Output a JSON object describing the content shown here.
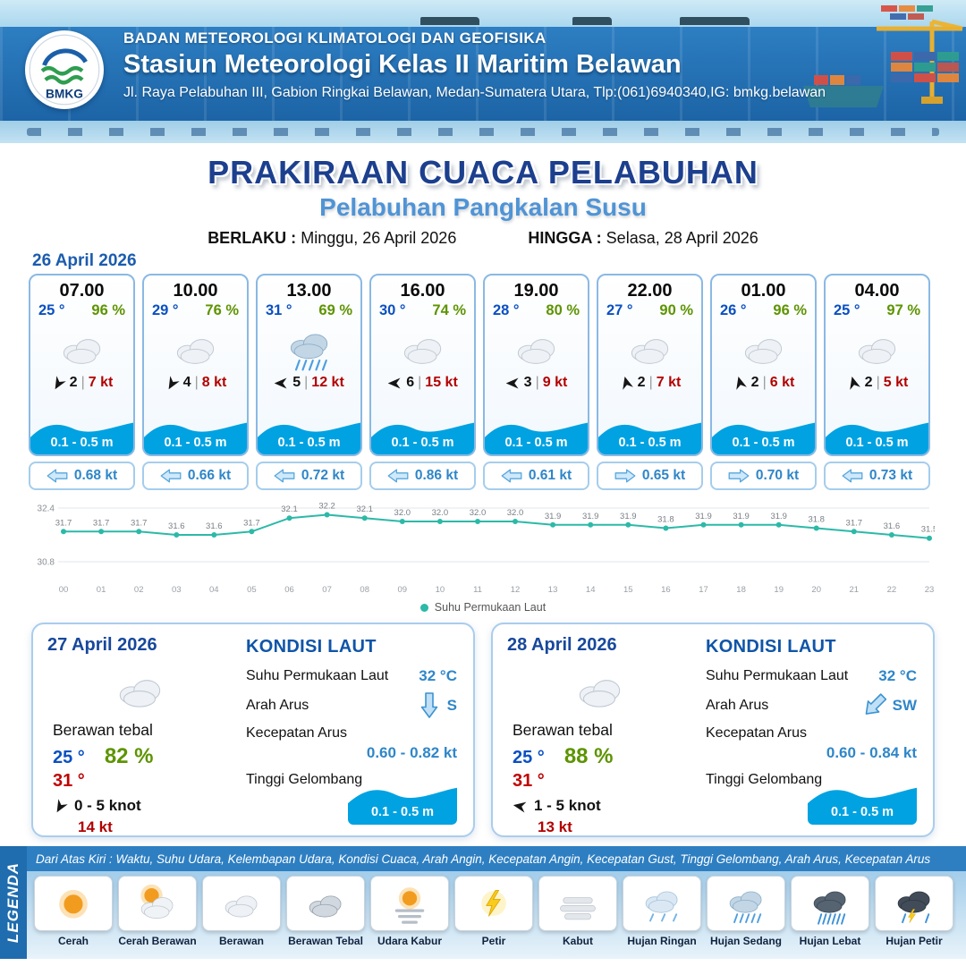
{
  "header": {
    "logo_text": "BMKG",
    "org": "BADAN METEOROLOGI KLIMATOLOGI DAN GEOFISIKA",
    "station": "Stasiun Meteorologi Kelas II Maritim Belawan",
    "address": "Jl. Raya Pelabuhan III, Gabion Ringkai Belawan, Medan-Sumatera Utara, Tlp:(061)6940340,IG: bmkg.belawan"
  },
  "title": {
    "main": "PRAKIRAAN CUACA PELABUHAN",
    "subtitle": "Pelabuhan Pangkalan Susu",
    "valid_label": "BERLAKU :",
    "valid_value": "Minggu, 26 April 2026",
    "until_label": "HINGGA :",
    "until_value": "Selasa, 28 April 2026"
  },
  "forecast": {
    "date": "26 April 2026",
    "sep": "|",
    "cards": [
      {
        "time": "07.00",
        "temp": "25 °",
        "humidity": "96 %",
        "icon": "cloud",
        "wind_dir_deg": 120,
        "wind_num": "2",
        "wind_speed": "7 kt",
        "wave": "0.1 - 0.5 m",
        "current_dir_deg": 180,
        "current": "0.68 kt"
      },
      {
        "time": "10.00",
        "temp": "29 °",
        "humidity": "76 %",
        "icon": "cloud",
        "wind_dir_deg": 120,
        "wind_num": "4",
        "wind_speed": "8 kt",
        "wave": "0.1 - 0.5 m",
        "current_dir_deg": 180,
        "current": "0.66 kt"
      },
      {
        "time": "13.00",
        "temp": "31 °",
        "humidity": "69 %",
        "icon": "rain-medium",
        "wind_dir_deg": 180,
        "wind_num": "5",
        "wind_speed": "12 kt",
        "wave": "0.1 - 0.5 m",
        "current_dir_deg": 180,
        "current": "0.72 kt"
      },
      {
        "time": "16.00",
        "temp": "30 °",
        "humidity": "74 %",
        "icon": "cloud",
        "wind_dir_deg": 180,
        "wind_num": "6",
        "wind_speed": "15 kt",
        "wave": "0.1 - 0.5 m",
        "current_dir_deg": 180,
        "current": "0.86 kt"
      },
      {
        "time": "19.00",
        "temp": "28 °",
        "humidity": "80 %",
        "icon": "cloud",
        "wind_dir_deg": 180,
        "wind_num": "3",
        "wind_speed": "9 kt",
        "wave": "0.1 - 0.5 m",
        "current_dir_deg": 180,
        "current": "0.61 kt"
      },
      {
        "time": "22.00",
        "temp": "27 °",
        "humidity": "90 %",
        "icon": "cloud",
        "wind_dir_deg": 255,
        "wind_num": "2",
        "wind_speed": "7 kt",
        "wave": "0.1 - 0.5 m",
        "current_dir_deg": 0,
        "current": "0.65 kt"
      },
      {
        "time": "01.00",
        "temp": "26 °",
        "humidity": "96 %",
        "icon": "cloud",
        "wind_dir_deg": 255,
        "wind_num": "2",
        "wind_speed": "6 kt",
        "wave": "0.1 - 0.5 m",
        "current_dir_deg": 0,
        "current": "0.70 kt"
      },
      {
        "time": "04.00",
        "temp": "25 °",
        "humidity": "97 %",
        "icon": "cloud",
        "wind_dir_deg": 255,
        "wind_num": "2",
        "wind_speed": "5 kt",
        "wave": "0.1 - 0.5 m",
        "current_dir_deg": 180,
        "current": "0.73 kt"
      }
    ]
  },
  "chart_data": {
    "type": "line",
    "series_name": "Suhu Permukaan Laut",
    "x": [
      "00",
      "01",
      "02",
      "03",
      "04",
      "05",
      "06",
      "07",
      "08",
      "09",
      "10",
      "11",
      "12",
      "13",
      "14",
      "15",
      "16",
      "17",
      "18",
      "19",
      "20",
      "21",
      "22",
      "23"
    ],
    "values": [
      31.7,
      31.7,
      31.7,
      31.6,
      31.6,
      31.7,
      32.1,
      32.2,
      32.1,
      32.0,
      32.0,
      32.0,
      32.0,
      31.9,
      31.9,
      31.9,
      31.8,
      31.9,
      31.9,
      31.9,
      31.8,
      31.7,
      31.6,
      31.5
    ],
    "ylim": [
      30.8,
      32.4
    ],
    "yticks": [
      32.4,
      30.8
    ],
    "line_color": "#2cb9a8",
    "legend_position": "bottom"
  },
  "days": [
    {
      "date": "27 April 2026",
      "icon": "cloud",
      "condition": "Berawan tebal",
      "temp_min": "25 °",
      "temp_max": "31 °",
      "humidity": "82 %",
      "wind_dir_deg": 120,
      "wind_range": "0  - 5 knot",
      "gust": "14 kt",
      "sea": {
        "title": "KONDISI LAUT",
        "sst_label": "Suhu Permukaan Laut",
        "sst": "32 °C",
        "dir_label": "Arah Arus",
        "dir_deg": 90,
        "dir_text": "S",
        "speed_label": "Kecepatan Arus",
        "speed": "0.60  - 0.82 kt",
        "wave_label": "Tinggi Gelombang",
        "wave": "0.1 - 0.5 m"
      }
    },
    {
      "date": "28 April 2026",
      "icon": "cloud",
      "condition": "Berawan tebal",
      "temp_min": "25 °",
      "temp_max": "31 °",
      "humidity": "88 %",
      "wind_dir_deg": 190,
      "wind_range": "1  - 5 knot",
      "gust": "13 kt",
      "sea": {
        "title": "KONDISI LAUT",
        "sst_label": "Suhu Permukaan Laut",
        "sst": "32 °C",
        "dir_label": "Arah Arus",
        "dir_deg": 135,
        "dir_text": "SW",
        "speed_label": "Kecepatan Arus",
        "speed": "0.60  - 0.84 kt",
        "wave_label": "Tinggi Gelombang",
        "wave": "0.1 - 0.5 m"
      }
    }
  ],
  "legend": {
    "sidebar": "LEGENDA",
    "note": "Dari Atas Kiri : Waktu, Suhu Udara, Kelembapan Udara, Kondisi Cuaca, Arah Angin, Kecepatan Angin, Kecepatan Gust, Tinggi Gelombang, Arah Arus, Kecepatan Arus",
    "items": [
      {
        "icon": "sun",
        "label": "Cerah"
      },
      {
        "icon": "sun-cloud",
        "label": "Cerah Berawan"
      },
      {
        "icon": "cloud",
        "label": "Berawan"
      },
      {
        "icon": "cloud-dark",
        "label": "Berawan Tebal"
      },
      {
        "icon": "haze",
        "label": "Udara Kabur"
      },
      {
        "icon": "lightning",
        "label": "Petir"
      },
      {
        "icon": "fog",
        "label": "Kabut"
      },
      {
        "icon": "rain-light",
        "label": "Hujan Ringan"
      },
      {
        "icon": "rain-medium",
        "label": "Hujan Sedang"
      },
      {
        "icon": "rain-heavy",
        "label": "Hujan Lebat"
      },
      {
        "icon": "storm",
        "label": "Hujan Petir"
      }
    ]
  }
}
